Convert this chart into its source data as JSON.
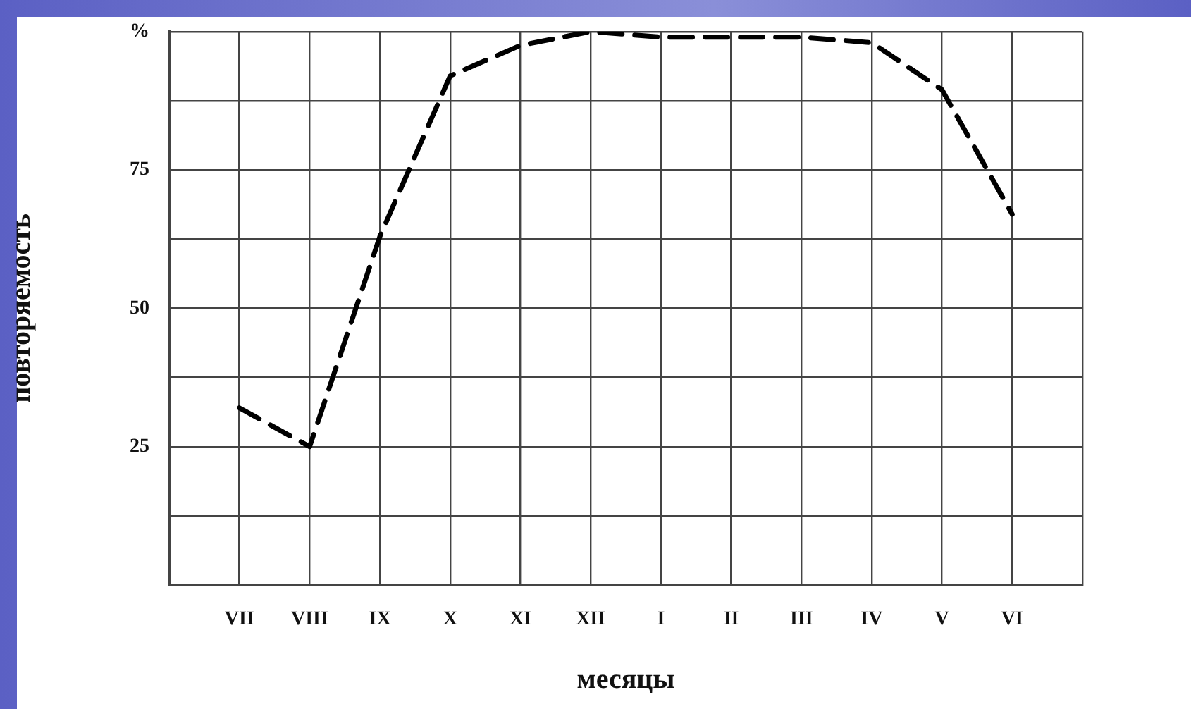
{
  "chart_data": {
    "type": "line",
    "xlabel": "месяцы",
    "ylabel": "повторяемость",
    "categories": [
      null,
      "VII",
      "VIII",
      "IX",
      "X",
      "XI",
      "XII",
      "I",
      "II",
      "III",
      "IV",
      "V",
      "VI",
      null
    ],
    "values": [
      null,
      32,
      25,
      63,
      92,
      97.5,
      100,
      99,
      99,
      99,
      98,
      89.5,
      67,
      null
    ],
    "color": "#000000",
    "line_style": "dashed",
    "marker": "none",
    "ylim": [
      0,
      100
    ],
    "yticks": [
      {
        "value": 0,
        "label": null
      },
      {
        "value": 12.5,
        "label": null
      },
      25,
      {
        "value": 37.5,
        "label": null
      },
      50,
      {
        "value": 62.5,
        "label": null
      },
      75,
      {
        "value": 87.5,
        "label": null
      },
      {
        "value": 100,
        "label": "%"
      }
    ],
    "grid": true
  }
}
